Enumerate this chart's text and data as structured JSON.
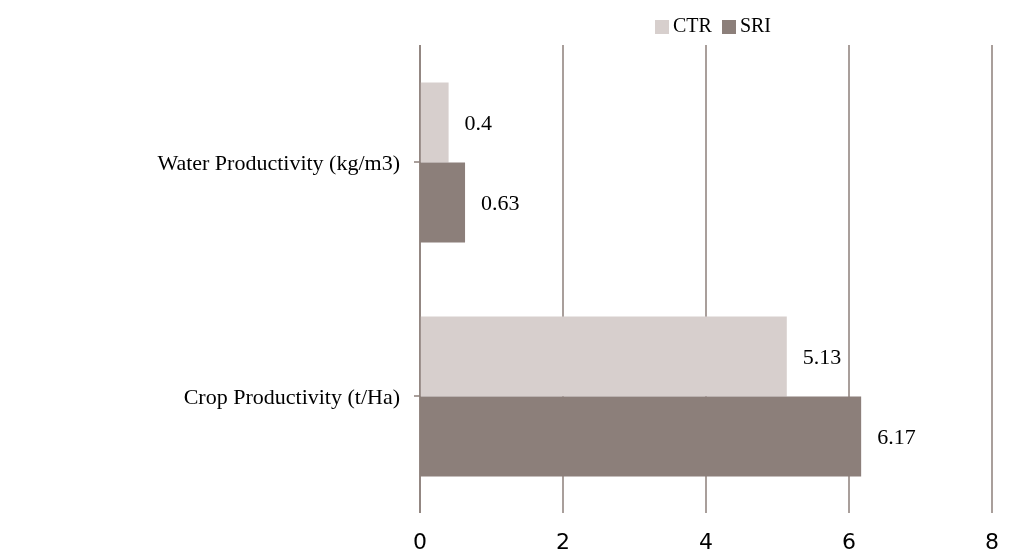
{
  "chart_data": {
    "type": "bar",
    "orientation": "horizontal",
    "categories": [
      "Water Productivity (kg/m3)",
      "Crop Productivity (t/Ha)"
    ],
    "series": [
      {
        "name": "CTR",
        "color": "#d7cfcd",
        "values": [
          0.4,
          5.13
        ]
      },
      {
        "name": "SRI",
        "color": "#8c7f7a",
        "values": [
          0.63,
          6.17
        ]
      }
    ],
    "xlim": [
      0,
      8
    ],
    "xticks": [
      0,
      2,
      4,
      6,
      8
    ],
    "grid": "x",
    "legend": "top",
    "data_labels": true
  }
}
